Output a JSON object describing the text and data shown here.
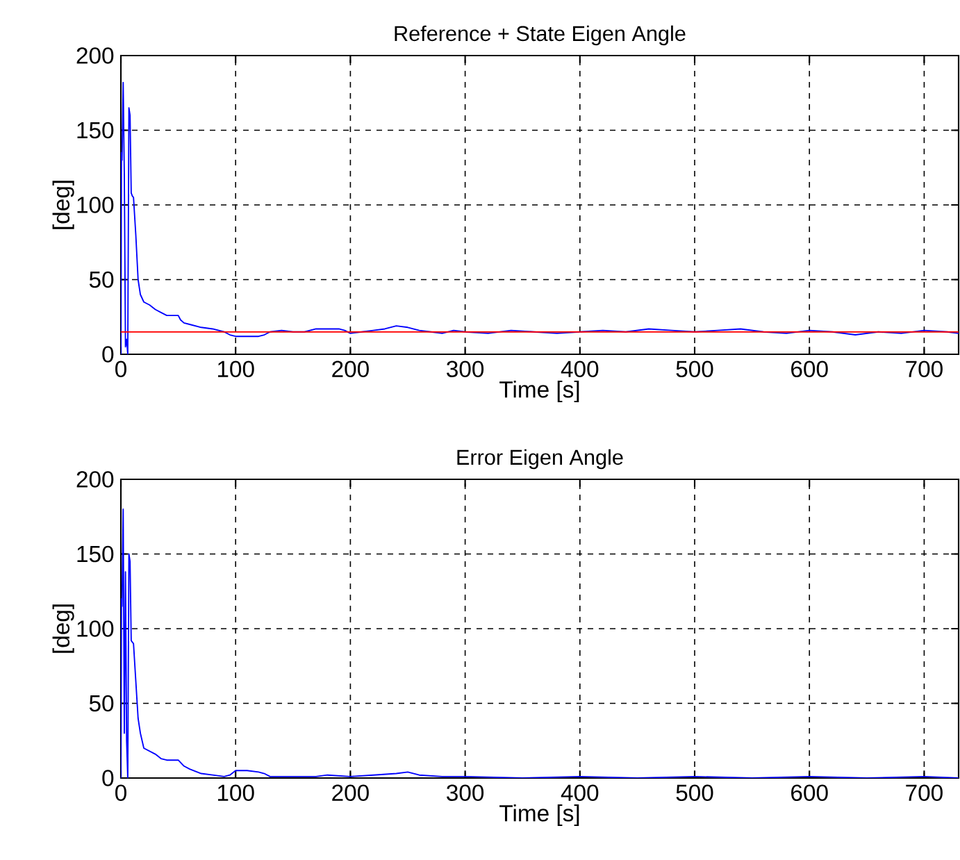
{
  "chart_data": [
    {
      "type": "line",
      "title": "Reference + State Eigen Angle",
      "xlabel": "Time [s]",
      "ylabel": "[deg]",
      "xlim": [
        0,
        730
      ],
      "ylim": [
        0,
        200
      ],
      "xticks": [
        0,
        100,
        200,
        300,
        400,
        500,
        600,
        700
      ],
      "yticks": [
        0,
        50,
        100,
        150,
        200
      ],
      "grid": true,
      "ref_lines": [
        {
          "axis": "y",
          "value": 15,
          "color": "#ff0000"
        }
      ],
      "series": [
        {
          "color": "#0000ff",
          "x": [
            0,
            0.5,
            1,
            2,
            3,
            4,
            5,
            6,
            7,
            8,
            9,
            10,
            11,
            13,
            15,
            17,
            20,
            25,
            30,
            35,
            40,
            50,
            52,
            55,
            60,
            70,
            80,
            90,
            95,
            100,
            110,
            120,
            125,
            130,
            140,
            150,
            160,
            170,
            180,
            190,
            195,
            200,
            210,
            220,
            230,
            240,
            250,
            260,
            270,
            280,
            290,
            300,
            320,
            340,
            360,
            380,
            400,
            420,
            440,
            460,
            480,
            500,
            520,
            540,
            560,
            580,
            600,
            620,
            640,
            660,
            680,
            700,
            720,
            730
          ],
          "values": [
            0,
            135,
            130,
            182,
            120,
            5,
            10,
            0,
            165,
            160,
            108,
            106,
            105,
            80,
            50,
            40,
            35,
            33,
            30,
            28,
            26,
            26,
            23,
            21,
            20,
            18,
            17,
            15,
            13,
            12,
            12,
            12,
            13,
            15,
            16,
            15,
            15,
            17,
            17,
            17,
            16,
            14,
            15,
            16,
            17,
            19,
            18,
            16,
            15,
            14,
            16,
            15,
            14,
            16,
            15,
            14,
            15,
            16,
            15,
            17,
            16,
            15,
            16,
            17,
            15,
            14,
            16,
            15,
            13,
            15,
            14,
            16,
            15,
            14
          ]
        }
      ]
    },
    {
      "type": "line",
      "title": "Error Eigen Angle",
      "xlabel": "Time [s]",
      "ylabel": "[deg]",
      "xlim": [
        0,
        730
      ],
      "ylim": [
        0,
        200
      ],
      "xticks": [
        0,
        100,
        200,
        300,
        400,
        500,
        600,
        700
      ],
      "yticks": [
        0,
        50,
        100,
        150,
        200
      ],
      "grid": true,
      "series": [
        {
          "color": "#0000ff",
          "x": [
            0,
            0.5,
            1,
            2,
            3,
            4,
            5,
            6,
            7,
            8,
            9,
            10,
            11,
            13,
            15,
            17,
            20,
            25,
            30,
            35,
            40,
            50,
            55,
            60,
            70,
            80,
            90,
            95,
            100,
            110,
            120,
            125,
            130,
            150,
            170,
            180,
            200,
            220,
            240,
            250,
            260,
            280,
            300,
            350,
            400,
            450,
            500,
            550,
            600,
            650,
            700,
            730
          ],
          "values": [
            0,
            120,
            115,
            180,
            30,
            138,
            25,
            0,
            150,
            145,
            92,
            91,
            90,
            65,
            40,
            30,
            20,
            18,
            16,
            13,
            12,
            12,
            8,
            6,
            3,
            2,
            1,
            2,
            5,
            5,
            4,
            3,
            1,
            1,
            1,
            2,
            1,
            2,
            3,
            4,
            2,
            1,
            1,
            0,
            1,
            0,
            1,
            0,
            1,
            0,
            1,
            0
          ]
        }
      ]
    }
  ]
}
